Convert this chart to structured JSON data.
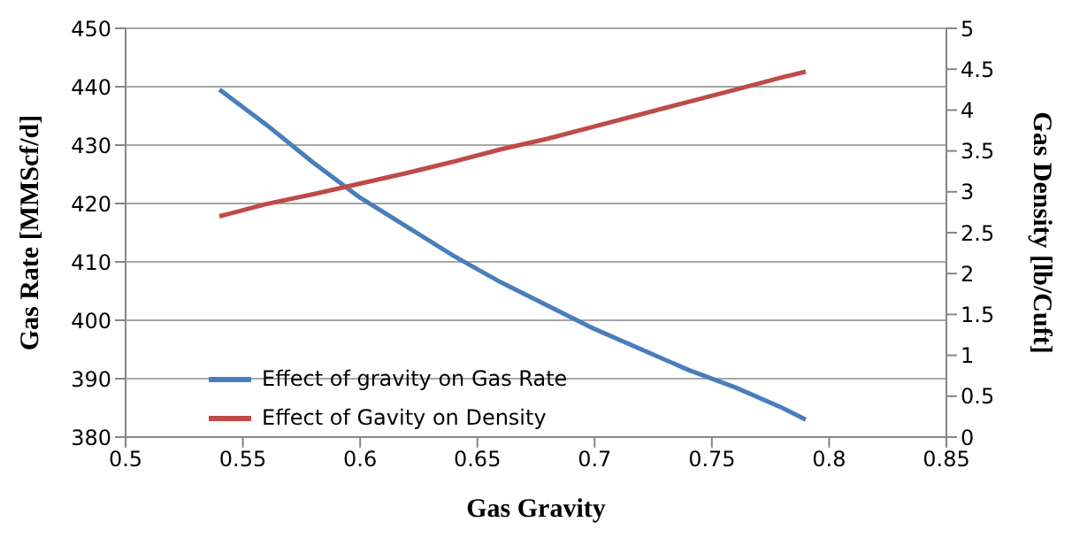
{
  "chart_data": {
    "type": "line",
    "xlabel": "Gas Gravity",
    "ylabel": "Gas Rate [MMScf/d]",
    "y2label": "Gas Density [lb/Cuft]",
    "x": [
      0.54,
      0.56,
      0.58,
      0.6,
      0.62,
      0.64,
      0.66,
      0.68,
      0.7,
      0.72,
      0.74,
      0.76,
      0.78,
      0.79
    ],
    "series": [
      {
        "name": "Effect of gravity on Gas Rate",
        "color": "#4a7ebb",
        "values": [
          439.5,
          433.5,
          427,
          421,
          416,
          411,
          406.5,
          402.5,
          398.5,
          395,
          391.5,
          388.5,
          385,
          383
        ]
      },
      {
        "name": "Effect of Gavity on Density",
        "color": "#be4b48",
        "axis": "y2",
        "values": [
          2.7,
          2.85,
          2.97,
          3.1,
          3.23,
          3.37,
          3.52,
          3.65,
          3.8,
          3.95,
          4.1,
          4.25,
          4.4,
          4.47
        ]
      }
    ],
    "xlim": [
      0.5,
      0.85
    ],
    "xticks": [
      0.5,
      0.55,
      0.6,
      0.65,
      0.7,
      0.75,
      0.8,
      0.85
    ],
    "ylim": [
      380,
      450
    ],
    "yticks": [
      380,
      390,
      400,
      410,
      420,
      430,
      440,
      450
    ],
    "y2lim": [
      0,
      5
    ],
    "y2ticks": [
      0,
      0.5,
      1,
      1.5,
      2,
      2.5,
      3,
      3.5,
      4,
      4.5,
      5
    ],
    "grid": "y",
    "legend": "bottom left",
    "marker": "none",
    "line_style": "solid"
  }
}
